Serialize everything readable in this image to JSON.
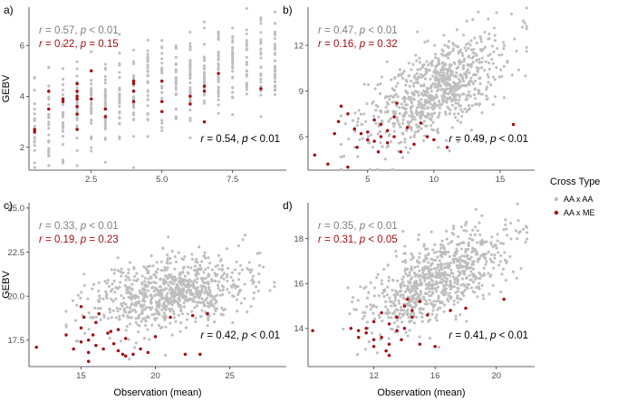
{
  "colors": {
    "aa_x_aa": "#bebebe",
    "aa_x_me": "#a50f15",
    "text_dark": "#000000",
    "axis_line": "#333333",
    "tick_text": "#4d4d4d"
  },
  "legend": {
    "title": "Cross Type",
    "items": [
      {
        "label": "AA x AA",
        "color": "#bebebe"
      },
      {
        "label": "AA x ME",
        "color": "#a50f15"
      }
    ]
  },
  "chart_data": [
    {
      "panel": "a)",
      "type": "scatter",
      "ylabel": "GEBV",
      "xlabel": "",
      "xlim": [
        0.3,
        9.4
      ],
      "ylim": [
        1.1,
        7.5
      ],
      "xticks": [
        2.5,
        5.0,
        7.5
      ],
      "xtick_labels": [
        "2.5",
        "5.0",
        "7.5"
      ],
      "yticks": [
        2,
        4,
        6
      ],
      "ytick_labels": [
        "2",
        "4",
        "6"
      ],
      "x_discrete": true,
      "stats": {
        "aa_x_aa": {
          "r": "0.57",
          "p_op": "<",
          "p": "0.01"
        },
        "aa_x_me": {
          "r": "0.22",
          "p_op": "=",
          "p": "0.15"
        },
        "all": {
          "r": "0.54",
          "p_op": "<",
          "p": "0.01"
        }
      },
      "aa_x_aa": {
        "n": 550,
        "x_min": 0.5,
        "x_max": 9.0,
        "slope": 0.33,
        "intercept": 2.75,
        "sd": 0.85
      },
      "aa_x_me": [
        [
          0.5,
          2.6
        ],
        [
          0.5,
          2.7
        ],
        [
          1.0,
          3.5
        ],
        [
          1.0,
          4.2
        ],
        [
          1.5,
          3.9
        ],
        [
          1.5,
          3.8
        ],
        [
          2.0,
          2.7
        ],
        [
          2.0,
          3.6
        ],
        [
          2.0,
          4.0
        ],
        [
          2.0,
          4.2
        ],
        [
          2.0,
          4.5
        ],
        [
          2.0,
          3.3
        ],
        [
          2.0,
          3.9
        ],
        [
          2.5,
          3.9
        ],
        [
          2.5,
          5.0
        ],
        [
          3.0,
          3.2
        ],
        [
          3.0,
          3.5
        ],
        [
          4.0,
          3.8
        ],
        [
          4.0,
          4.6
        ],
        [
          4.0,
          4.5
        ],
        [
          4.0,
          4.2
        ],
        [
          5.0,
          3.8
        ],
        [
          5.0,
          4.6
        ],
        [
          5.0,
          3.4
        ],
        [
          6.0,
          3.7
        ],
        [
          6.0,
          4.0
        ],
        [
          6.5,
          4.2
        ],
        [
          6.5,
          4.4
        ],
        [
          6.5,
          3.0
        ],
        [
          7.0,
          4.9
        ],
        [
          8.5,
          4.3
        ]
      ]
    },
    {
      "panel": "b)",
      "type": "scatter",
      "ylabel": "",
      "xlabel": "",
      "xlim": [
        0.5,
        17.6
      ],
      "ylim": [
        3.8,
        14.5
      ],
      "xticks": [
        5,
        10,
        15
      ],
      "xtick_labels": [
        "5",
        "10",
        "15"
      ],
      "yticks": [
        6,
        9,
        12
      ],
      "ytick_labels": [
        "6",
        "9",
        "12"
      ],
      "x_discrete": false,
      "stats": {
        "aa_x_aa": {
          "r": "0.47",
          "p_op": "<",
          "p": "0.01"
        },
        "aa_x_me": {
          "r": "0.16",
          "p_op": "=",
          "p": "0.32"
        },
        "all": {
          "r": "0.49",
          "p_op": "<",
          "p": "0.01"
        }
      },
      "aa_x_aa": {
        "n": 800,
        "x_min": 3.0,
        "x_max": 17.0,
        "slope": 0.42,
        "intercept": 4.8,
        "sd": 1.4
      },
      "aa_x_me": [
        [
          1.0,
          4.8
        ],
        [
          2.0,
          4.2
        ],
        [
          2.5,
          6.2
        ],
        [
          2.8,
          7.0
        ],
        [
          3.0,
          8.0
        ],
        [
          3.5,
          4.0
        ],
        [
          3.5,
          7.5
        ],
        [
          4.0,
          6.5
        ],
        [
          4.5,
          6.2
        ],
        [
          5.0,
          5.8
        ],
        [
          5.0,
          6.3
        ],
        [
          5.5,
          5.7
        ],
        [
          5.5,
          7.1
        ],
        [
          6.0,
          6.0
        ],
        [
          6.0,
          6.8
        ],
        [
          6.5,
          5.6
        ],
        [
          6.5,
          6.4
        ],
        [
          7.0,
          6.0
        ],
        [
          7.0,
          7.3
        ],
        [
          7.5,
          5.0
        ],
        [
          8.0,
          6.6
        ],
        [
          8.5,
          5.5
        ],
        [
          9.0,
          6.9
        ],
        [
          9.5,
          6.0
        ],
        [
          10.0,
          5.8
        ],
        [
          11.0,
          5.3
        ],
        [
          16.0,
          6.8
        ],
        [
          4.2,
          5.3
        ],
        [
          5.8,
          5.0
        ],
        [
          7.2,
          8.2
        ]
      ]
    },
    {
      "panel": "c)",
      "type": "scatter",
      "ylabel": "GEBV",
      "xlabel": "Observation (mean)",
      "xlim": [
        11.5,
        28.8
      ],
      "ylim": [
        16.0,
        25.3
      ],
      "xticks": [
        15,
        20,
        25
      ],
      "xtick_labels": [
        "15",
        "20",
        "25"
      ],
      "yticks": [
        17.5,
        20.0,
        22.5,
        25.0
      ],
      "ytick_labels": [
        "17.5",
        "20.0",
        "22.5",
        "25.0"
      ],
      "x_discrete": false,
      "stats": {
        "aa_x_aa": {
          "r": "0.33",
          "p_op": "<",
          "p": "0.01"
        },
        "aa_x_me": {
          "r": "0.19",
          "p_op": "=",
          "p": "0.23"
        },
        "all": {
          "r": "0.42",
          "p_op": "<",
          "p": "0.01"
        }
      },
      "aa_x_aa": {
        "n": 800,
        "x_min": 14.0,
        "x_max": 28.0,
        "slope": 0.15,
        "intercept": 17.0,
        "sd": 1.0
      },
      "aa_x_me": [
        [
          12.0,
          17.1
        ],
        [
          14.0,
          17.8
        ],
        [
          14.5,
          17.0
        ],
        [
          15.0,
          17.4
        ],
        [
          15.0,
          18.2
        ],
        [
          15.0,
          19.4
        ],
        [
          15.2,
          18.8
        ],
        [
          15.5,
          16.8
        ],
        [
          15.5,
          17.5
        ],
        [
          15.5,
          16.3
        ],
        [
          16.0,
          17.2
        ],
        [
          16.0,
          18.5
        ],
        [
          16.5,
          17.0
        ],
        [
          16.8,
          17.9
        ],
        [
          17.0,
          18.0
        ],
        [
          17.5,
          16.9
        ],
        [
          17.5,
          18.1
        ],
        [
          17.8,
          16.7
        ],
        [
          18.0,
          16.6
        ],
        [
          18.0,
          17.6
        ],
        [
          18.5,
          16.7
        ],
        [
          19.0,
          17.0
        ],
        [
          19.5,
          16.8
        ],
        [
          20.0,
          17.7
        ],
        [
          21.0,
          18.8
        ],
        [
          22.0,
          16.7
        ],
        [
          22.5,
          18.9
        ],
        [
          23.0,
          16.7
        ],
        [
          23.5,
          19.0
        ],
        [
          16.2,
          19.0
        ],
        [
          15.8,
          17.8
        ],
        [
          17.2,
          17.3
        ]
      ]
    },
    {
      "panel": "d)",
      "type": "scatter",
      "ylabel": "",
      "xlabel": "Observation (mean)",
      "xlim": [
        7.7,
        22.5
      ],
      "ylim": [
        12.3,
        19.6
      ],
      "xticks": [
        12,
        16,
        20
      ],
      "xtick_labels": [
        "12",
        "16",
        "20"
      ],
      "yticks": [
        14,
        16,
        18
      ],
      "ytick_labels": [
        "14",
        "16",
        "18"
      ],
      "x_discrete": false,
      "stats": {
        "aa_x_aa": {
          "r": "0.35",
          "p_op": "<",
          "p": "0.01"
        },
        "aa_x_me": {
          "r": "0.31",
          "p_op": "<",
          "p": "0.05"
        },
        "all": {
          "r": "0.41",
          "p_op": "<",
          "p": "0.01"
        }
      },
      "aa_x_aa": {
        "n": 800,
        "x_min": 10.0,
        "x_max": 22.0,
        "slope": 0.3,
        "intercept": 11.3,
        "sd": 0.9
      },
      "aa_x_me": [
        [
          8.0,
          13.9
        ],
        [
          10.5,
          14.0
        ],
        [
          11.0,
          13.6
        ],
        [
          11.0,
          13.9
        ],
        [
          11.5,
          13.8
        ],
        [
          11.5,
          14.0
        ],
        [
          12.0,
          13.5
        ],
        [
          12.0,
          14.3
        ],
        [
          12.0,
          13.2
        ],
        [
          12.5,
          13.6
        ],
        [
          12.5,
          14.7
        ],
        [
          13.0,
          12.8
        ],
        [
          13.0,
          14.2
        ],
        [
          13.0,
          13.3
        ],
        [
          13.5,
          13.9
        ],
        [
          13.5,
          14.5
        ],
        [
          14.0,
          14.0
        ],
        [
          14.0,
          15.0
        ],
        [
          14.5,
          14.5
        ],
        [
          14.5,
          14.8
        ],
        [
          15.0,
          15.2
        ],
        [
          15.0,
          13.3
        ],
        [
          15.5,
          14.6
        ],
        [
          16.0,
          13.2
        ],
        [
          17.0,
          14.8
        ],
        [
          18.0,
          14.9
        ],
        [
          20.5,
          15.3
        ],
        [
          13.8,
          13.5
        ],
        [
          12.8,
          13.0
        ],
        [
          14.2,
          15.3
        ]
      ]
    }
  ]
}
